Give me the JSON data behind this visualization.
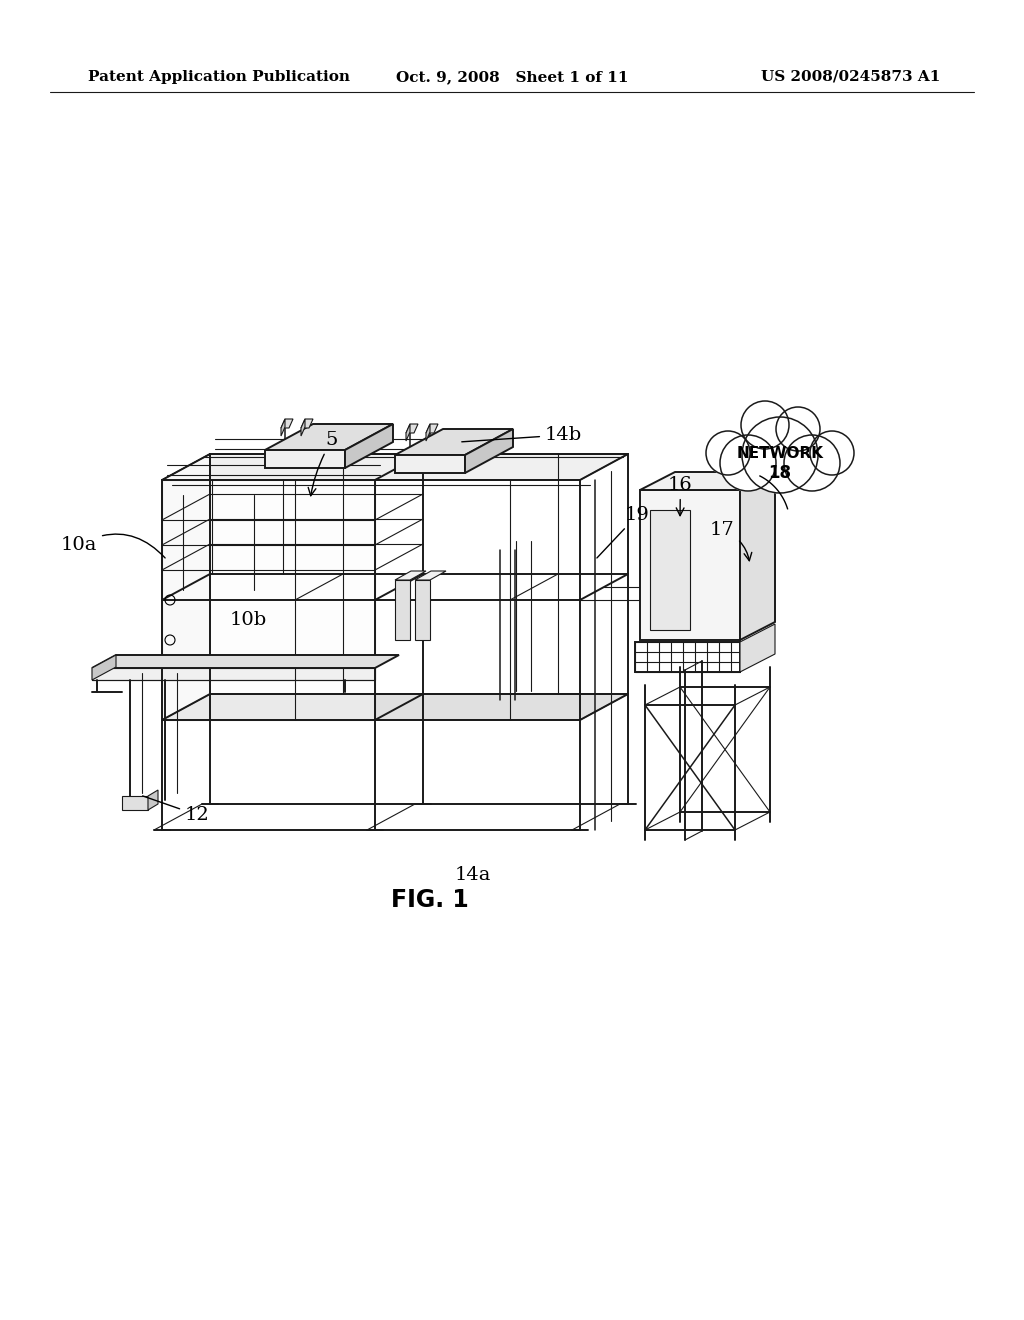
{
  "bg_color": "#ffffff",
  "header_left": "Patent Application Publication",
  "header_mid": "Oct. 9, 2008   Sheet 1 of 11",
  "header_right": "US 2008/0245873 A1",
  "fig_label": "FIG. 1",
  "lw_main": 1.4,
  "lw_thin": 0.8,
  "lw_med": 1.1,
  "line_color": "#1a1a1a",
  "fill_light": "#f0f0f0",
  "fill_mid": "#e0e0e0",
  "fill_dark": "#c8c8c8"
}
